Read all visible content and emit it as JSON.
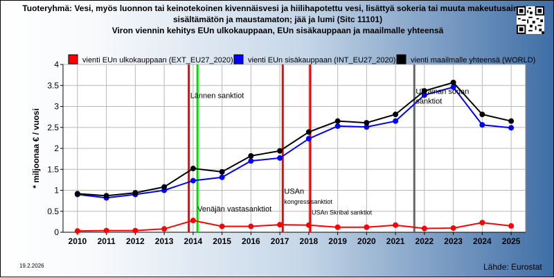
{
  "chart_data": {
    "type": "line",
    "title": "Tuoteryhmä: Vesi, myös luonnon tai keinotekoinen kivennäisvesi ja hiilihapotettu vesi, lisättyä sokeria tai muuta makeutusainetta",
    "title_line2": "sisältämätön ja maustamaton; jää ja lumi (Sitc 11101)",
    "subtitle": "Viron viennin kehitys EUn ulkokauppaan, EUn sisäkauppaan ja maailmalle yhteensä",
    "ylabel": "* miljoonaa € / vuosi",
    "xlabel": "",
    "ylim": [
      0,
      4
    ],
    "yticks": [
      "0",
      "0.5",
      "1",
      "1.5",
      "2",
      "2.5",
      "3",
      "3.5",
      "4"
    ],
    "categories": [
      "2010",
      "2011",
      "2012",
      "2013",
      "2014",
      "2015",
      "2016",
      "2017",
      "2018",
      "2019",
      "2020",
      "2021",
      "2022",
      "2023",
      "2024",
      "2025"
    ],
    "grid": true,
    "legend_position": "top",
    "series": [
      {
        "name": "vienti EUn ulkokauppaan (EXT_EU27_2020)",
        "color": "#ff0000",
        "values": [
          0.03,
          0.04,
          0.04,
          0.08,
          0.28,
          0.14,
          0.14,
          0.18,
          0.17,
          0.12,
          0.12,
          0.17,
          0.09,
          0.1,
          0.23,
          0.15
        ]
      },
      {
        "name": "vienti EUn sisäkauppaan (INT_EU27_2020)",
        "color": "#0000ff",
        "values": [
          0.9,
          0.82,
          0.9,
          1.0,
          1.23,
          1.31,
          1.7,
          1.77,
          2.23,
          2.53,
          2.51,
          2.65,
          3.27,
          3.46,
          2.56,
          2.49
        ]
      },
      {
        "name": "vienti maailmalle yhteensä (WORLD)",
        "color": "#000000",
        "values": [
          0.92,
          0.87,
          0.94,
          1.08,
          1.52,
          1.44,
          1.82,
          1.94,
          2.39,
          2.65,
          2.61,
          2.81,
          3.37,
          3.57,
          2.81,
          2.65
        ]
      }
    ],
    "markers": [
      {
        "x": 2013.85,
        "color": "#ff0000"
      },
      {
        "x": 2014.15,
        "color": "#00dd00"
      },
      {
        "x": 2017.1,
        "color": "#ff0000"
      },
      {
        "x": 2018.05,
        "color": "#ff0000"
      },
      {
        "x": 2021.65,
        "color": "#666666"
      }
    ],
    "annotations": [
      {
        "text": "Lännen sanktiot",
        "x": 2013.9,
        "y": 3.2
      },
      {
        "text": "Venäjän vastasanktiot",
        "x": 2014.15,
        "y": 0.5
      },
      {
        "text": "USAn",
        "x": 2017.15,
        "y": 0.92
      },
      {
        "text": "kongressisanktiot",
        "x": 2017.15,
        "y": 0.68
      },
      {
        "text": "USAn Skribal sanktiot",
        "x": 2018.1,
        "y": 0.42
      },
      {
        "text": "Ukrainan sodan",
        "x": 2021.7,
        "y": 3.3
      },
      {
        "text": "sanktiot",
        "x": 2021.7,
        "y": 3.07
      }
    ]
  },
  "footer": {
    "date": "19.2.2026",
    "source": "Lähde: Eurostat"
  },
  "qr_icon": "qr-code-icon"
}
